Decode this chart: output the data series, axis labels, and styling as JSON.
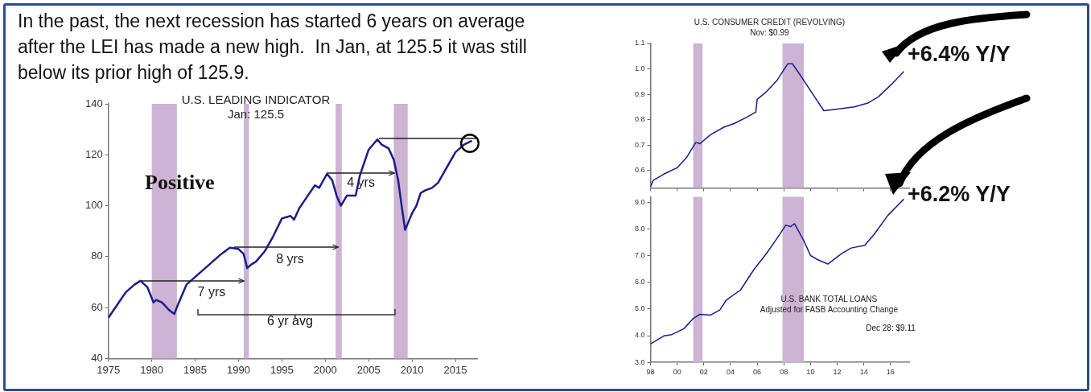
{
  "chart_data": [
    {
      "type": "line",
      "title": "U.S. LEADING INDICATOR",
      "subtitle": "Jan: 125.5",
      "xlim": [
        1975,
        2017.5
      ],
      "xticks": [
        1975,
        1980,
        1985,
        1990,
        1995,
        2000,
        2005,
        2010,
        2015
      ],
      "ylim": [
        40,
        140
      ],
      "yticks": [
        40,
        60,
        80,
        100,
        120,
        140
      ],
      "legend": false,
      "grid": false,
      "marker": "none",
      "series": [
        {
          "color": "#1c1c8a",
          "x": [
            1975,
            1976,
            1977,
            1978,
            1978.7,
            1979.5,
            1980.2,
            1980.5,
            1981.2,
            1982,
            1982.6,
            1983,
            1984,
            1985,
            1986,
            1987,
            1988,
            1989,
            1990,
            1990.6,
            1991,
            1991.5,
            1992,
            1993,
            1994,
            1995,
            1996,
            1996.4,
            1997,
            1998,
            1998.8,
            1999.3,
            2000.2,
            2000.8,
            2001.3,
            2001.8,
            2002.5,
            2003.5,
            2004,
            2004.5,
            2005,
            2006,
            2006.5,
            2007.3,
            2007.9,
            2008.4,
            2008.8,
            2009.2,
            2010,
            2010.5,
            2011,
            2011.5,
            2012.3,
            2013,
            2014,
            2015,
            2016,
            2016.9
          ],
          "values": [
            56,
            61,
            66,
            69,
            70.5,
            68,
            62,
            63,
            62,
            59,
            57.5,
            61,
            69,
            72,
            75,
            78,
            81,
            83.5,
            83,
            81,
            75.5,
            77,
            78,
            82,
            88,
            95,
            96,
            94.5,
            99,
            104,
            108,
            107,
            112.5,
            110,
            104,
            100,
            104,
            104,
            112,
            117,
            122,
            126,
            124,
            122.5,
            118,
            110,
            100,
            90.5,
            97,
            100,
            105,
            106,
            107,
            109,
            115,
            121,
            124,
            125.5
          ]
        }
      ],
      "bands": [
        {
          "axis": "x",
          "from": 1980,
          "to": 1982.9,
          "color": "#cdb3d4"
        },
        {
          "axis": "x",
          "from": 1990.6,
          "to": 1991.2,
          "color": "#cdb3d4"
        },
        {
          "axis": "x",
          "from": 2001.2,
          "to": 2001.9,
          "color": "#cdb3d4"
        },
        {
          "axis": "x",
          "from": 2007.9,
          "to": 2009.5,
          "color": "#cdb3d4"
        }
      ],
      "annotations": [
        "In the past, the next recession has started 6 years on average after the LEI has made a new high.  In Jan, at 125.5 it was still below its prior high of 125.9.",
        "Positive",
        {
          "text": "7 yrs",
          "x": 1990.6,
          "y": 70.5
        },
        {
          "text": "8 yrs",
          "x": 2001.5,
          "y": 83.9
        },
        {
          "text": "4 yrs",
          "x": 2008,
          "y": 112.8
        },
        "6 yr avg"
      ]
    },
    {
      "type": "line",
      "title": "U.S. CONSUMER CREDIT (REVOLVING)",
      "subtitle": "Nov: $0.99",
      "xlim": [
        1998,
        2017.4
      ],
      "xticks": [
        1998,
        2000,
        2002,
        2004,
        2006,
        2008,
        2010,
        2012,
        2014,
        2016
      ],
      "tick_labels": "y",
      "ylim": [
        0.53,
        1.1
      ],
      "yticks": [
        {
          "value": 0.6,
          "label": "0.6"
        },
        {
          "value": 0.7,
          "label": "0.7"
        },
        {
          "value": 0.8,
          "label": "0.8"
        },
        {
          "value": 0.9,
          "label": "0.9"
        },
        {
          "value": 1,
          "label": "1.0"
        },
        {
          "value": 1.1,
          "label": "1.1"
        }
      ],
      "legend": false,
      "grid": false,
      "marker": "none",
      "series": [
        {
          "color": "#1c1c8a",
          "x": [
            1998,
            1998.2,
            1999,
            2000,
            2000.7,
            2001.4,
            2001.7,
            2002.5,
            2003.5,
            2004.3,
            2005.25,
            2005.9,
            2006,
            2006.6,
            2007.5,
            2008.3,
            2008.65,
            2009.3,
            2010.3,
            2011,
            2011.8,
            2013.3,
            2014.3,
            2015.1,
            2016.1,
            2017
          ],
          "values": [
            0.535,
            0.56,
            0.585,
            0.61,
            0.65,
            0.71,
            0.705,
            0.74,
            0.77,
            0.785,
            0.81,
            0.83,
            0.88,
            0.905,
            0.955,
            1.02,
            1.02,
            0.97,
            0.89,
            0.835,
            0.84,
            0.85,
            0.865,
            0.89,
            0.94,
            0.99
          ]
        }
      ],
      "bands": [
        {
          "axis": "x",
          "from": 2001.2,
          "to": 2001.9,
          "color": "#cdb3d4"
        },
        {
          "axis": "x",
          "from": 2007.9,
          "to": 2009.5,
          "color": "#cdb3d4"
        }
      ],
      "annotations": [
        "+6.4% Y/Y"
      ]
    },
    {
      "type": "line",
      "title": "U.S. BANK TOTAL LOANS",
      "subtitle": "Adjusted for FASB Accounting Change",
      "xlim": [
        1998,
        2017.4
      ],
      "xticks": [
        {
          "value": 1998,
          "label": "98"
        },
        {
          "value": 2000,
          "label": "00"
        },
        {
          "value": 2002,
          "label": "02"
        },
        {
          "value": 2004,
          "label": "04"
        },
        {
          "value": 2006,
          "label": "06"
        },
        {
          "value": 2008,
          "label": "08"
        },
        {
          "value": 2010,
          "label": "10"
        },
        {
          "value": 2012,
          "label": "12"
        },
        {
          "value": 2014,
          "label": "14"
        },
        {
          "value": 2016,
          "label": "16"
        }
      ],
      "ylim": [
        3,
        9.2
      ],
      "yticks": [
        {
          "value": 3,
          "label": "3.0"
        },
        {
          "value": 4,
          "label": "4.0"
        },
        {
          "value": 5,
          "label": "5.0"
        },
        {
          "value": 6,
          "label": "6.0"
        },
        {
          "value": 7,
          "label": "7.0"
        },
        {
          "value": 8,
          "label": "8.0"
        },
        {
          "value": 9,
          "label": "9.0"
        }
      ],
      "legend": false,
      "grid": false,
      "marker": "none",
      "series": [
        {
          "color": "#1c1c8a",
          "x": [
            1998,
            1999,
            1999.6,
            2000.5,
            2001.2,
            2001.7,
            2002.5,
            2003.2,
            2003.7,
            2004.75,
            2005.75,
            2006.75,
            2007.5,
            2008.15,
            2008.5,
            2008.8,
            2009.5,
            2010,
            2010.55,
            2011.3,
            2012.3,
            2013.05,
            2014.07,
            2014.8,
            2015.8,
            2017
          ],
          "values": [
            3.69,
            3.99,
            4.04,
            4.26,
            4.64,
            4.8,
            4.77,
            4.96,
            5.34,
            5.71,
            6.47,
            7.11,
            7.65,
            8.14,
            8.08,
            8.19,
            7.55,
            7,
            6.84,
            6.68,
            7.06,
            7.28,
            7.38,
            7.81,
            8.5,
            9.11
          ]
        }
      ],
      "bands": [
        {
          "axis": "x",
          "from": 2001.2,
          "to": 2001.9,
          "color": "#cdb3d4"
        },
        {
          "axis": "x",
          "from": 2007.9,
          "to": 2009.5,
          "color": "#cdb3d4"
        }
      ],
      "annotations": [
        "Dec 28: $9.11",
        "+6.2% Y/Y"
      ]
    }
  ]
}
